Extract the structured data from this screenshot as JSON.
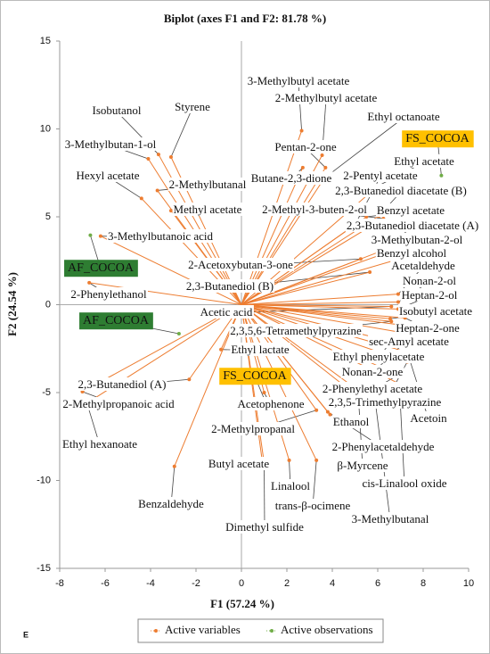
{
  "chart_data": {
    "type": "biplot",
    "title": "Biplot (axes F1 and F2: 81.78 %)",
    "xlabel": "F1 (57.24 %)",
    "ylabel": "F2 (24.54 %)",
    "panel_label": "E",
    "xlim": [
      -8,
      10
    ],
    "xticks": [
      -8,
      -6,
      -4,
      -2,
      0,
      2,
      4,
      6,
      8,
      10
    ],
    "ylim": [
      -15,
      15
    ],
    "yticks": [
      -15,
      -10,
      -5,
      0,
      5,
      10,
      15
    ],
    "series": [
      {
        "name": "Active variables",
        "color": "#ed7d31",
        "labels": [
          "Isobutanol",
          "Styrene",
          "3-Methylbutan-1-ol",
          "Hexyl acetate",
          "2-Methylbutanal",
          "Methyl acetate",
          "3-Methylbutanoic acid",
          "2-Phenylethanol",
          "2-Acetoxybutan-3-one",
          "2,3-Butanediol (B)",
          "Acetic acid",
          "2,3,5,6-Tetramethylpyrazine",
          "Ethyl lactate",
          "2,3-Butanediol (A)",
          "2-Methylpropanoic acid",
          "Ethyl hexanoate",
          "Benzaldehyde",
          "Butyl acetate",
          "Linalool",
          "trans-β-ocimene",
          "Dimethyl sulfide",
          "2-Methylpropanal",
          "Acetophenone",
          "Ethanol",
          "2-Phenylacetaldehyde",
          "β-Myrcene",
          "cis-Linalool oxide",
          "3-Methylbutanal",
          "2-Phenylethyl acetate",
          "2,3,5-Trimethylpyrazine",
          "Acetoin",
          "Nonan-2-one",
          "Ethyl phenylacetate",
          "sec-Amyl acetate",
          "Heptan-2-one",
          "Isobutyl acetate",
          "Heptan-2-ol",
          "Nonan-2-ol",
          "Acetaldehyde",
          "Benzyl alcohol",
          "3-Methylbutan-2-ol",
          "2,3-Butanediol diacetate (A)",
          "Benzyl acetate",
          "2,3-Butanediol diacetate (B)",
          "2-Pentyl acetate",
          "Ethyl acetate",
          "Pentan-2-one",
          "Butane-2,3-dione",
          "2-Methyl-3-buten-2-ol",
          "Ethyl octanoate",
          "3-Methylbutyl acetate",
          "2-Methylbutyl acetate"
        ],
        "x": [
          -3.65,
          -3.1,
          -4.1,
          -4.4,
          -3.7,
          -3.1,
          -6.2,
          -6.7,
          5.25,
          5.65,
          6.6,
          6.6,
          -0.9,
          -2.3,
          -7.0,
          -6.8,
          -2.95,
          0.9,
          2.1,
          3.3,
          1.0,
          3.3,
          1.0,
          3.9,
          3.8,
          5.15,
          6.95,
          5.9,
          6.9,
          7.3,
          7.3,
          7.1,
          6.9,
          7.0,
          7.2,
          6.55,
          6.9,
          6.9,
          6.9,
          6.95,
          6.7,
          6.25,
          5.5,
          6.05,
          5.0,
          6.0,
          3.7,
          2.7,
          6.25,
          3.65,
          2.65,
          3.55
        ],
        "y": [
          8.55,
          8.4,
          8.3,
          6.05,
          6.5,
          5.35,
          3.9,
          1.25,
          2.6,
          1.85,
          -0.1,
          -0.95,
          -2.55,
          -4.25,
          -4.95,
          -5.6,
          -9.2,
          -8.75,
          -8.85,
          -8.85,
          -9.0,
          -6.0,
          -5.0,
          -6.25,
          -6.1,
          -5.25,
          -4.5,
          -5.6,
          -4.0,
          -3.25,
          -2.7,
          -2.25,
          -1.55,
          -1.15,
          -0.75,
          -0.8,
          -0.25,
          0.15,
          0.6,
          2.6,
          3.1,
          3.1,
          5.0,
          5.05,
          4.55,
          6.75,
          7.8,
          7.8,
          4.9,
          7.2,
          9.9,
          8.5
        ]
      },
      {
        "name": "Active observations",
        "color": "#70ad47",
        "labels": [
          "AF_COCOA",
          "AF_COCOA",
          "FS_COCOA",
          "FS_COCOA"
        ],
        "label_colors": [
          "#2e7d32",
          "#2e7d32",
          "#ffc000",
          "#ffc000"
        ],
        "x": [
          -6.65,
          -2.75,
          8.8,
          1.0
        ],
        "y": [
          3.95,
          -1.65,
          7.35,
          -5.35
        ]
      }
    ]
  }
}
